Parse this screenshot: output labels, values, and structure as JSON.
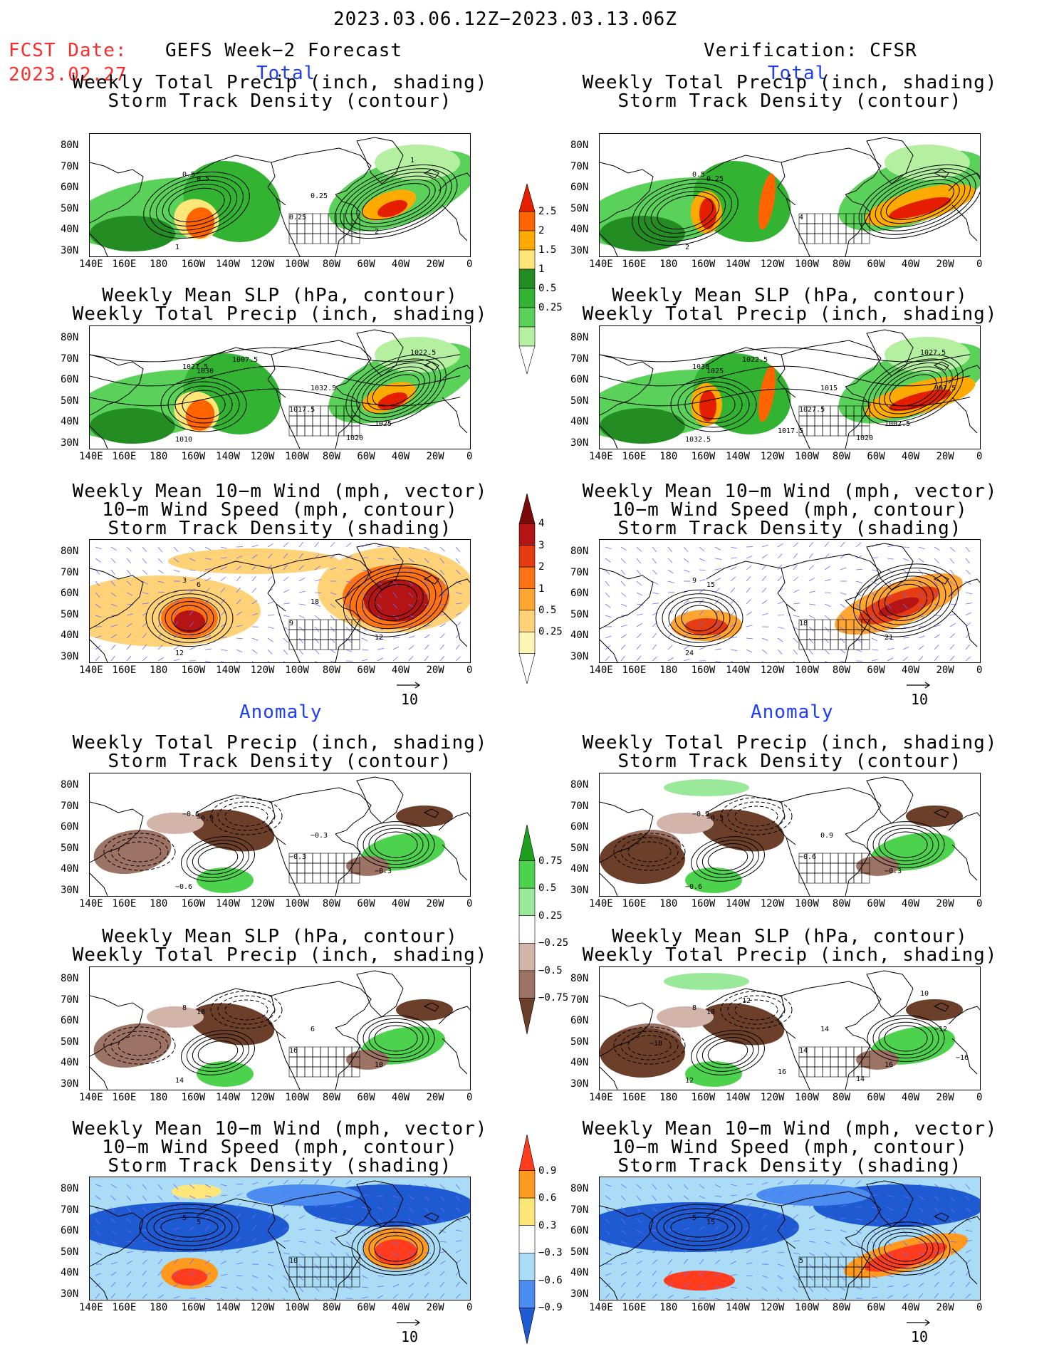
{
  "header": {
    "title": "2023.03.06.12Z−2023.03.13.06Z",
    "fcst_label": "FCST Date:",
    "fcst_date": "2023.02.27",
    "left_column": "GEFS Week−2 Forecast",
    "right_column": "Verification: CFSR"
  },
  "sections": {
    "total": "Total",
    "anomaly": "Anomaly"
  },
  "panel_titles": {
    "precip_storm": [
      "Weekly Total Precip (inch, shading)",
      "Storm Track Density (contour)"
    ],
    "slp_precip": [
      "Weekly Mean SLP (hPa, contour)",
      "Weekly Total Precip (inch, shading)"
    ],
    "wind_storm": [
      "Weekly Mean 10−m Wind (mph, vector)",
      "10−m Wind Speed (mph, contour)",
      "Storm Track Density (shading)"
    ]
  },
  "axes": {
    "lat_labels": [
      "80N",
      "70N",
      "60N",
      "50N",
      "40N",
      "30N"
    ],
    "lon_labels": [
      "140E",
      "160E",
      "180",
      "160W",
      "140W",
      "120W",
      "100W",
      "80W",
      "60W",
      "40W",
      "20W",
      "0"
    ]
  },
  "vector_scale": "10",
  "colorbars": {
    "total_precip": {
      "labels": [
        "2.5",
        "2",
        "1.5",
        "1",
        "0.5",
        "0.25"
      ],
      "colors": [
        "#ffffff",
        "#b4f0a0",
        "#5ad25a",
        "#32b432",
        "#238c23",
        "#ffe678",
        "#ffaa00",
        "#ff6400",
        "#e61e00"
      ]
    },
    "total_storm": {
      "labels": [
        "4",
        "3",
        "2",
        "1",
        "0.5",
        "0.25"
      ],
      "colors": [
        "#ffffff",
        "#fff5b4",
        "#ffd278",
        "#ffa532",
        "#ff7314",
        "#e63c14",
        "#b41414",
        "#7a0a0a"
      ]
    },
    "anom_precip": {
      "labels": [
        "0.75",
        "0.5",
        "0.25",
        "−0.25",
        "−0.5",
        "−0.75"
      ],
      "colors": [
        "#6b3f2a",
        "#9c7364",
        "#d2b4a8",
        "#ffffff",
        "#9ae89a",
        "#4cd24c",
        "#1ea01e"
      ]
    },
    "anom_storm": {
      "labels": [
        "0.9",
        "0.6",
        "0.3",
        "−0.3",
        "−0.6",
        "−0.9"
      ],
      "colors": [
        "#1e5ad2",
        "#4b8cf0",
        "#aadcf5",
        "#ffffff",
        "#ffe678",
        "#ff9a1e",
        "#ff3c1e"
      ]
    }
  },
  "contour_labels": {
    "p1_left": [
      "0.5",
      "0.5",
      "0.25",
      "1",
      "2",
      "0.25",
      "1"
    ],
    "p1_right": [
      "0.5",
      "0.25",
      "4",
      "2"
    ],
    "p2_left": [
      "1027.5",
      "1030",
      "1017.5",
      "1010",
      "1025",
      "1032.5",
      "1022.5",
      "1007.5",
      "1020"
    ],
    "p2_right": [
      "1030",
      "1025",
      "1027.5",
      "1032.5",
      "1002.5",
      "1015",
      "1027.5",
      "1022.5",
      "1020",
      "1017.5",
      "997.5"
    ],
    "p3_left": [
      "3",
      "6",
      "9",
      "12",
      "12",
      "18"
    ],
    "p3_right": [
      "9",
      "15",
      "18",
      "24",
      "21"
    ],
    "p4_left": [
      "−0.6",
      "−0.9",
      "−0.3",
      "−0.6",
      "−0.3",
      "−0.3"
    ],
    "p4_right": [
      "−0.9",
      "−0.3",
      "−0.6",
      "−0.6",
      "−0.3",
      "0.9"
    ],
    "p5_left": [
      "8",
      "18",
      "16",
      "14",
      "10",
      "6"
    ],
    "p5_right": [
      "8",
      "18",
      "14",
      "12",
      "16",
      "14",
      "10",
      "12",
      "14",
      "16",
      "−12",
      "−18",
      "−16"
    ],
    "p6_left": [
      "5",
      "5",
      "10"
    ],
    "p6_right": [
      "5",
      "15",
      "5"
    ]
  }
}
